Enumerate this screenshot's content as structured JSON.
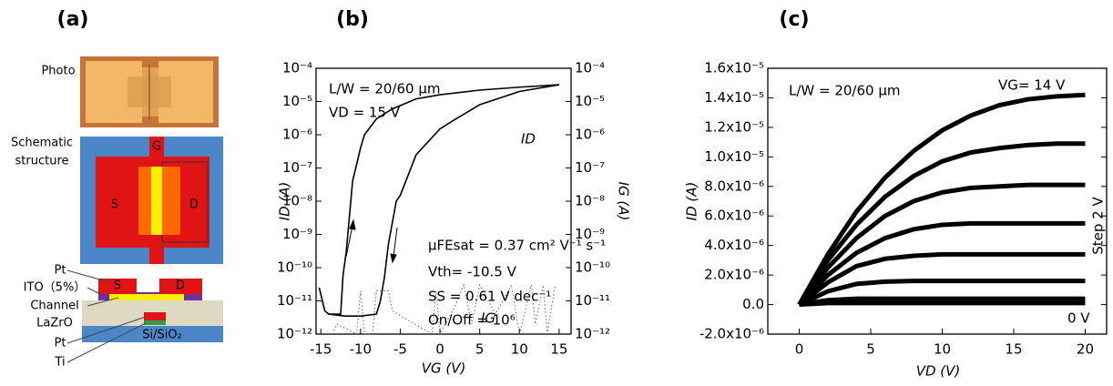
{
  "panel_labels": [
    "(a)",
    "(b)",
    "(c)"
  ],
  "diagram": {
    "photo_label": "Photo",
    "schematic_label": [
      "Schematic",
      "structure"
    ],
    "schematic": {
      "gate": "G",
      "source": "S",
      "drain": "D"
    },
    "layers": [
      "Pt",
      "ITO（5%）",
      "Channel",
      "LaZrO",
      "Pt",
      "Ti"
    ],
    "cross_section": {
      "source": "S",
      "drain": "D",
      "substrate": "Si/SiO₂"
    }
  },
  "chart_data": [
    {
      "type": "line",
      "ylog": true,
      "xlim": [
        -15.6,
        16.5
      ],
      "xticks": [
        -15,
        -10,
        -5,
        0,
        5,
        10,
        15
      ],
      "ylim": [
        1e-12,
        0.0001
      ],
      "yticks": [
        {
          "value": 1e-12,
          "label": "10⁻¹²"
        },
        {
          "value": 1e-11,
          "label": "10⁻¹¹"
        },
        {
          "value": 1e-10,
          "label": "10⁻¹⁰"
        },
        {
          "value": 1e-09,
          "label": "10⁻⁹"
        },
        {
          "value": 1e-08,
          "label": "10⁻⁸"
        },
        {
          "value": 1e-07,
          "label": "10⁻⁷"
        },
        {
          "value": 1e-06,
          "label": "10⁻⁶"
        },
        {
          "value": 1e-05,
          "label": "10⁻⁵"
        },
        {
          "value": 0.0001,
          "label": "10⁻⁴"
        }
      ],
      "y2lim": [
        1e-12,
        0.0001
      ],
      "y2ticks": [
        {
          "value": 1e-12,
          "label": "10⁻¹²"
        },
        {
          "value": 1e-11,
          "label": "10⁻¹¹"
        },
        {
          "value": 1e-10,
          "label": "10⁻¹⁰"
        },
        {
          "value": 1e-09,
          "label": "10⁻⁹"
        },
        {
          "value": 1e-08,
          "label": "10⁻⁸"
        },
        {
          "value": 1e-07,
          "label": "10⁻⁷"
        },
        {
          "value": 1e-06,
          "label": "10⁻⁶"
        },
        {
          "value": 1e-05,
          "label": "10⁻⁵"
        },
        {
          "value": 0.0001,
          "label": "10⁻⁴"
        }
      ],
      "xlabel": "VG (V)",
      "ylabel": "ID (A)",
      "y2label": "IG (A)",
      "series": [
        {
          "color": "#000000",
          "x": [
            -15.2,
            -14.5,
            -14,
            -13,
            -12.5,
            -12.2,
            -11.8,
            -11,
            -10,
            -9.5,
            -8,
            -6,
            -3,
            0,
            5,
            10,
            15
          ],
          "values": [
            2.5e-11,
            5e-12,
            4e-12,
            4e-12,
            4e-12,
            6e-11,
            3e-10,
            4e-08,
            4e-07,
            1e-06,
            3e-06,
            6e-06,
            1.2e-05,
            1.6e-05,
            2.2e-05,
            2.7e-05,
            3.2e-05
          ]
        },
        {
          "color": "#000000",
          "x": [
            15,
            10,
            5,
            2,
            0,
            -3,
            -5,
            -5.5,
            -6.5,
            -7,
            -7.5,
            -8,
            -10,
            -12,
            -14
          ],
          "values": [
            3.2e-05,
            2e-05,
            8e-06,
            3e-06,
            1.5e-06,
            2.5e-07,
            1.5e-08,
            1e-08,
            5e-10,
            5e-11,
            1e-11,
            4e-12,
            3.5e-12,
            3.5e-12,
            4e-12
          ]
        },
        {
          "color": "#666666",
          "style": "dotted",
          "axis": "y2",
          "x": [
            -13.5,
            -13,
            -10.5,
            -10,
            -9.5,
            -8.5,
            -8,
            -6.5,
            -6,
            -1,
            -0.5,
            0,
            2,
            3,
            4,
            5,
            7,
            9,
            10,
            11.5,
            12,
            13,
            13.5,
            14.5
          ],
          "values": [
            1e-12,
            2e-12,
            1e-12,
            2e-11,
            1e-12,
            1e-12,
            2e-11,
            2e-11,
            5e-12,
            1e-12,
            2e-11,
            1e-12,
            8e-12,
            3e-11,
            2e-12,
            3e-11,
            4e-12,
            3e-11,
            1e-12,
            3e-11,
            2e-12,
            3e-11,
            1e-12,
            3e-11
          ]
        }
      ],
      "annotations": [
        "L/W = 20/60 μm",
        "VD = 15 V",
        "ID",
        "μFEsat = 0.37 cm² V⁻¹ s⁻¹",
        "Vth= -10.5 V",
        "SS = 0.61 V dec⁻¹",
        "On/Off = 10⁶",
        "IG"
      ]
    },
    {
      "type": "line",
      "xlim": [
        -2.2,
        21.5
      ],
      "xticks": [
        0,
        5,
        10,
        15,
        20
      ],
      "ylim": [
        -2e-06,
        1.6e-05
      ],
      "yticks": [
        {
          "value": -2e-06,
          "label": "-2.0x10⁻⁶"
        },
        {
          "value": 0,
          "label": "0.0"
        },
        {
          "value": 2e-06,
          "label": "2.0x10⁻⁶"
        },
        {
          "value": 4e-06,
          "label": "4.0x10⁻⁶"
        },
        {
          "value": 6e-06,
          "label": "6.0x10⁻⁶"
        },
        {
          "value": 8e-06,
          "label": "8.0x10⁻⁶"
        },
        {
          "value": 1e-05,
          "label": "1.0x10⁻⁵"
        },
        {
          "value": 1.2e-05,
          "label": "1.2x10⁻⁵"
        },
        {
          "value": 1.4e-05,
          "label": "1.4x10⁻⁵"
        },
        {
          "value": 1.6e-05,
          "label": "1.6x10⁻⁵"
        }
      ],
      "xlabel": "VD (V)",
      "ylabel": "ID (A)",
      "x": [
        0,
        2,
        4,
        6,
        8,
        10,
        12,
        14,
        16,
        18,
        20
      ],
      "series": [
        {
          "color": "#000000",
          "values": [
            0,
            3.4e-06,
            6.3e-06,
            8.6e-06,
            1.04e-05,
            1.18e-05,
            1.28e-05,
            1.35e-05,
            1.39e-05,
            1.41e-05,
            1.42e-05
          ]
        },
        {
          "color": "#000000",
          "values": [
            0,
            3e-06,
            5.4e-06,
            7.3e-06,
            8.7e-06,
            9.7e-06,
            1.03e-05,
            1.06e-05,
            1.08e-05,
            1.09e-05,
            1.09e-05
          ]
        },
        {
          "color": "#000000",
          "values": [
            0,
            2.5e-06,
            4.5e-06,
            6e-06,
            7e-06,
            7.6e-06,
            7.9e-06,
            8e-06,
            8.1e-06,
            8.1e-06,
            8.1e-06
          ]
        },
        {
          "color": "#000000",
          "values": [
            0,
            2e-06,
            3.5e-06,
            4.5e-06,
            5.1e-06,
            5.4e-06,
            5.5e-06,
            5.5e-06,
            5.5e-06,
            5.5e-06,
            5.5e-06
          ]
        },
        {
          "color": "#000000",
          "values": [
            0,
            1.5e-06,
            2.6e-06,
            3.1e-06,
            3.3e-06,
            3.4e-06,
            3.4e-06,
            3.4e-06,
            3.4e-06,
            3.4e-06,
            3.4e-06
          ]
        },
        {
          "color": "#000000",
          "values": [
            0,
            9e-07,
            1.4e-06,
            1.55e-06,
            1.6e-06,
            1.6e-06,
            1.6e-06,
            1.6e-06,
            1.6e-06,
            1.6e-06,
            1.6e-06
          ]
        },
        {
          "color": "#000000",
          "values": [
            0,
            3e-07,
            4e-07,
            4e-07,
            4e-07,
            4e-07,
            4e-07,
            4e-07,
            4e-07,
            4e-07,
            4e-07
          ]
        },
        {
          "color": "#000000",
          "values": [
            0,
            1e-07,
            1e-07,
            1e-07,
            1e-07,
            1e-07,
            1e-07,
            1e-07,
            1e-07,
            1e-07,
            1e-07
          ]
        }
      ],
      "annotations": [
        "L/W = 20/60 μm",
        "VG= 14 V",
        "0 V",
        "Step 2 V"
      ]
    }
  ]
}
